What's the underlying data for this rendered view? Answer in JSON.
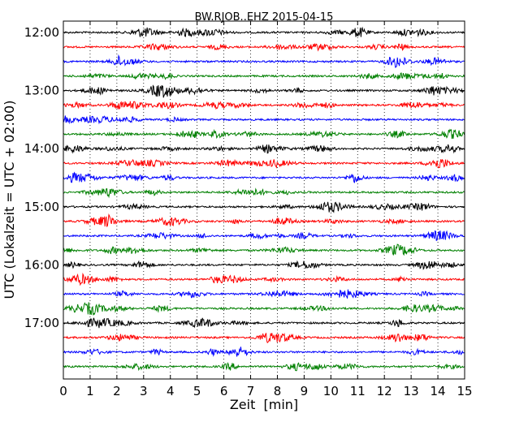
{
  "chart_data": {
    "type": "line",
    "title": "BW.RJOB..EHZ 2015-04-15",
    "xlabel": "Zeit  [min]",
    "ylabel": "UTC (Lokalzeit = UTC + 02:00)",
    "xlim": [
      0,
      15
    ],
    "x_ticks": [
      "0",
      "1",
      "2",
      "3",
      "4",
      "5",
      "6",
      "7",
      "8",
      "9",
      "10",
      "11",
      "12",
      "13",
      "14",
      "15"
    ],
    "y_ticks": [
      "12:00",
      "13:00",
      "14:00",
      "15:00",
      "16:00",
      "17:00"
    ],
    "grid": "vertical dotted",
    "trace_interval_minutes": 15,
    "start_time": "12:00",
    "trace_colors": [
      "#000000",
      "#ff0000",
      "#0000ff",
      "#008000"
    ],
    "trace_count": 24
  }
}
